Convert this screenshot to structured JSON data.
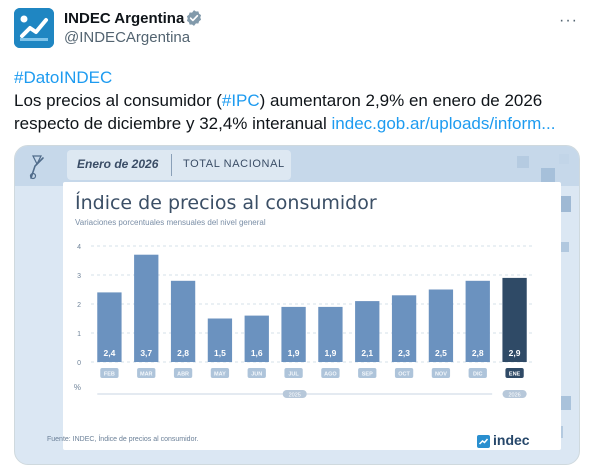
{
  "tweet": {
    "author_name": "INDEC Argentina",
    "handle": "@INDECArgentina",
    "more_label": "···",
    "hashtag_dato": "#DatoINDEC",
    "text_part1": "Los precios al consumidor (",
    "hashtag_ipc": "#IPC",
    "text_part2": ") aumentaron 2,9% en enero de 2026",
    "text_line3": "respecto de diciembre y 32,4% interanual ",
    "link": "indec.gob.ar/uploads/inform..."
  },
  "media": {
    "month_label": "Enero de 2026",
    "section_label": "TOTAL NACIONAL",
    "source": "Fuente: INDEC, Índice de precios al consumidor.",
    "brand": "indec"
  },
  "chart_data": {
    "type": "bar",
    "title": "Índice de precios al consumidor",
    "subtitle": "Variaciones porcentuales mensuales del nivel general",
    "categories": [
      "FEB",
      "MAR",
      "ABR",
      "MAY",
      "JUN",
      "JUL",
      "AGO",
      "SEP",
      "OCT",
      "NOV",
      "DIC",
      "ENE"
    ],
    "values": [
      2.4,
      3.7,
      2.8,
      1.5,
      1.6,
      1.9,
      1.9,
      2.1,
      2.3,
      2.5,
      2.8,
      2.9
    ],
    "value_labels": [
      "2,4",
      "3,7",
      "2,8",
      "1,5",
      "1,6",
      "1,9",
      "1,9",
      "2,1",
      "2,3",
      "2,5",
      "2,8",
      "2,9"
    ],
    "y_ticks": [
      "0",
      "1",
      "2",
      "3",
      "4"
    ],
    "ylim": [
      0,
      4
    ],
    "ylabel": "%",
    "year_labels": [
      "2025",
      "2026"
    ],
    "grid": true,
    "colors": {
      "bar": "#6b92bf",
      "highlight": "#2f4a66",
      "label_text": "#ffffff"
    }
  }
}
